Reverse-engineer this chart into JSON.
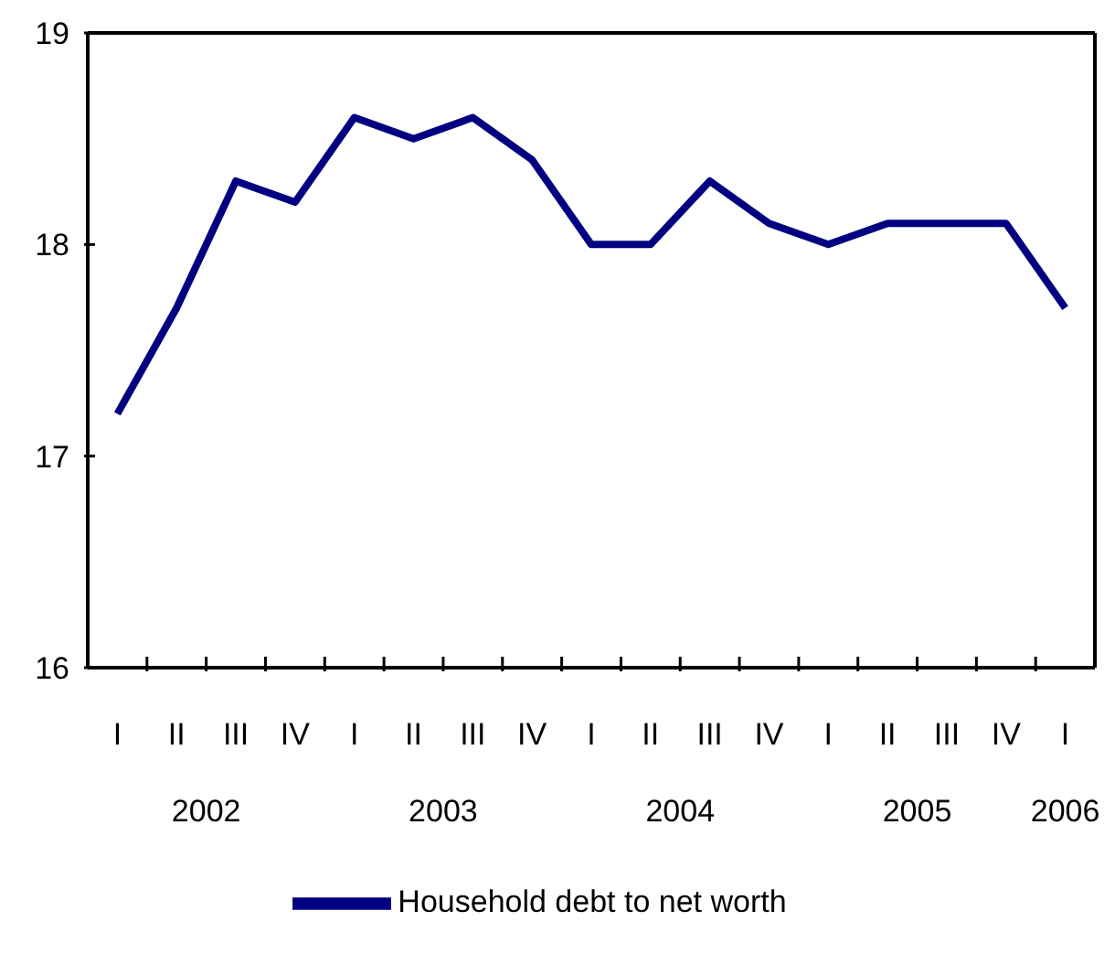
{
  "chart_data": {
    "type": "line",
    "categories": [
      "I",
      "II",
      "III",
      "IV",
      "I",
      "II",
      "III",
      "IV",
      "I",
      "II",
      "III",
      "IV",
      "I",
      "II",
      "III",
      "IV",
      "I"
    ],
    "series": [
      {
        "name": "Household debt to net worth",
        "color": "#000080",
        "values": [
          17.2,
          17.7,
          18.3,
          18.2,
          18.6,
          18.5,
          18.6,
          18.4,
          18.0,
          18.0,
          18.3,
          18.1,
          18.0,
          18.1,
          18.1,
          18.1,
          17.7
        ]
      }
    ],
    "annotations": [
      "2002",
      "2003",
      "2004",
      "2005",
      "2006"
    ],
    "ylim": [
      16,
      19
    ],
    "yticks": [
      16,
      17,
      18,
      19
    ],
    "grid": false,
    "legend": "bottom",
    "marker": "none",
    "line_style": "solid"
  }
}
